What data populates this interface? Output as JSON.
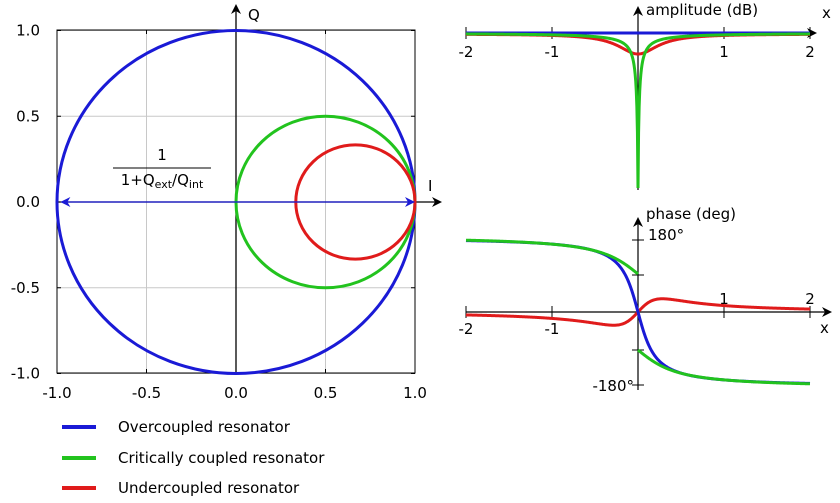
{
  "chart_data": [
    {
      "type": "line",
      "subtype": "IQ-plane circles (complex S21 / resonance circles)",
      "xlabel": "I",
      "ylabel": "Q",
      "xlim": [
        -1.0,
        1.0
      ],
      "ylim": [
        -1.0,
        1.0
      ],
      "x_ticks": [
        "-1.0",
        "-0.5",
        "0.0",
        "0.5",
        "1.0"
      ],
      "y_ticks": [
        "1.0",
        "0.5",
        "0.0",
        "-0.5",
        "-1.0"
      ],
      "x_tick_values": [
        -1.0,
        -0.5,
        0.0,
        0.5,
        1.0
      ],
      "y_tick_values": [
        1.0,
        0.5,
        0.0,
        -0.5,
        -1.0
      ],
      "grid": true,
      "series": [
        {
          "name": "Overcoupled resonator",
          "color": "#1a1ad6",
          "center": [
            0.0,
            0.0
          ],
          "radius": 1.0
        },
        {
          "name": "Critically coupled resonator",
          "color": "#22c31e",
          "center": [
            0.5,
            0.0
          ],
          "radius": 0.5
        },
        {
          "name": "Undercoupled resonator",
          "color": "#e01b1b",
          "center": [
            0.667,
            0.0
          ],
          "radius": 0.333
        }
      ],
      "annotation": {
        "numerator": "1",
        "denominator": {
          "prefix": "1+Q",
          "sub1": "ext",
          "mid": "/Q",
          "sub2": "int"
        },
        "arrow_from": [
          -0.97,
          0.0
        ],
        "arrow_to": [
          1.0,
          0.0
        ],
        "arrow_color": "#1a1ad6"
      }
    },
    {
      "type": "line",
      "xlabel": "x",
      "ylabel": "amplitude (dB)",
      "xlim": [
        -2,
        2
      ],
      "x_ticks": [
        "-2",
        "-1",
        "1",
        "2"
      ],
      "x_tick_values": [
        -2,
        -1,
        1,
        2
      ],
      "grid": false,
      "series": [
        {
          "name": "Overcoupled resonator",
          "color": "#1a1ad6",
          "shape": "flat at 0 dB"
        },
        {
          "name": "Critically coupled resonator",
          "color": "#22c31e",
          "shape": "deep notch to -inf at x=0"
        },
        {
          "name": "Undercoupled resonator",
          "color": "#e01b1b",
          "shape": "shallow dip at x=0"
        }
      ]
    },
    {
      "type": "line",
      "xlabel": "x",
      "ylabel": "phase (deg)",
      "xlim": [
        -2,
        2
      ],
      "ylim": [
        -180,
        180
      ],
      "x_ticks": [
        "1",
        "2",
        "-2",
        "-1"
      ],
      "x_tick_values": [
        1,
        2,
        -2,
        -1
      ],
      "y_ticks": [
        "180°",
        "-180°"
      ],
      "grid": false,
      "series": [
        {
          "name": "Overcoupled resonator",
          "color": "#1a1ad6",
          "shape": "continuous 2-arctan sweep"
        },
        {
          "name": "Critically coupled resonator",
          "color": "#22c31e",
          "shape": "arctan with 180° jump at x=0"
        },
        {
          "name": "Undercoupled resonator",
          "color": "#e01b1b",
          "shape": "small excursion around 0°"
        }
      ]
    }
  ],
  "legend": {
    "items": [
      {
        "label": "Overcoupled resonator",
        "color": "#1a1ad6"
      },
      {
        "label": "Critically coupled resonator",
        "color": "#22c31e"
      },
      {
        "label": "Undercoupled resonator",
        "color": "#e01b1b"
      }
    ]
  }
}
